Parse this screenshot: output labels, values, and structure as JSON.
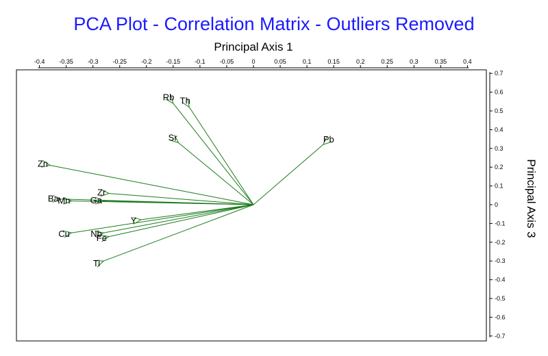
{
  "chart_data": {
    "type": "scatter",
    "title": "PCA Plot - Correlation Matrix - Outliers Removed",
    "xlabel": "Principal Axis 1",
    "ylabel": "Principal Axis 3",
    "xlim": [
      -0.4,
      0.4
    ],
    "ylim": [
      -0.7,
      0.7
    ],
    "xticks": [
      -0.4,
      -0.35,
      -0.3,
      -0.25,
      -0.2,
      -0.15,
      -0.1,
      -0.05,
      0,
      0.05,
      0.1,
      0.15,
      0.2,
      0.25,
      0.3,
      0.35,
      0.4
    ],
    "xtick_labels": [
      "-0.4",
      "-0.35",
      "-0.3",
      "-0.25",
      "-0.2",
      "-0.15",
      "-0.1",
      "-0.05",
      "0",
      "0.05",
      "0.1",
      "0.15",
      "0.2",
      "0.25",
      "0.3",
      "0.35",
      "0.4"
    ],
    "yticks": [
      0.7,
      0.6,
      0.5,
      0.4,
      0.3,
      0.2,
      0.1,
      0,
      -0.1,
      -0.2,
      -0.3,
      -0.4,
      -0.5,
      -0.6,
      -0.7
    ],
    "ytick_labels": [
      "0.7",
      "0.6",
      "0.5",
      "0.4",
      "0.3",
      "0.2",
      "0.1",
      "0",
      "-0.1",
      "-0.2",
      "-0.3",
      "-0.4",
      "-0.5",
      "-0.6",
      "-0.7"
    ],
    "x_axis_position": "top",
    "y_axis_position": "right",
    "grid": false,
    "vectors": [
      {
        "name": "Rb",
        "x": -0.15,
        "y": 0.54
      },
      {
        "name": "Th",
        "x": -0.12,
        "y": 0.52
      },
      {
        "name": "Sr",
        "x": -0.14,
        "y": 0.33
      },
      {
        "name": "Pb",
        "x": 0.13,
        "y": 0.32
      },
      {
        "name": "Zn",
        "x": -0.38,
        "y": 0.21
      },
      {
        "name": "Zr",
        "x": -0.27,
        "y": 0.06
      },
      {
        "name": "Ba",
        "x": -0.36,
        "y": 0.03
      },
      {
        "name": "Mn",
        "x": -0.34,
        "y": 0.02
      },
      {
        "name": "Ga",
        "x": -0.28,
        "y": 0.02
      },
      {
        "name": "Y",
        "x": -0.21,
        "y": -0.08
      },
      {
        "name": "Cu",
        "x": -0.34,
        "y": -0.15
      },
      {
        "name": "Nb",
        "x": -0.28,
        "y": -0.15
      },
      {
        "name": "Fe",
        "x": -0.27,
        "y": -0.17
      },
      {
        "name": "Ti",
        "x": -0.28,
        "y": -0.3
      }
    ],
    "colors": {
      "title": "#1a1aff",
      "vectors": "#1a7a1a",
      "axes": "#000000"
    }
  }
}
